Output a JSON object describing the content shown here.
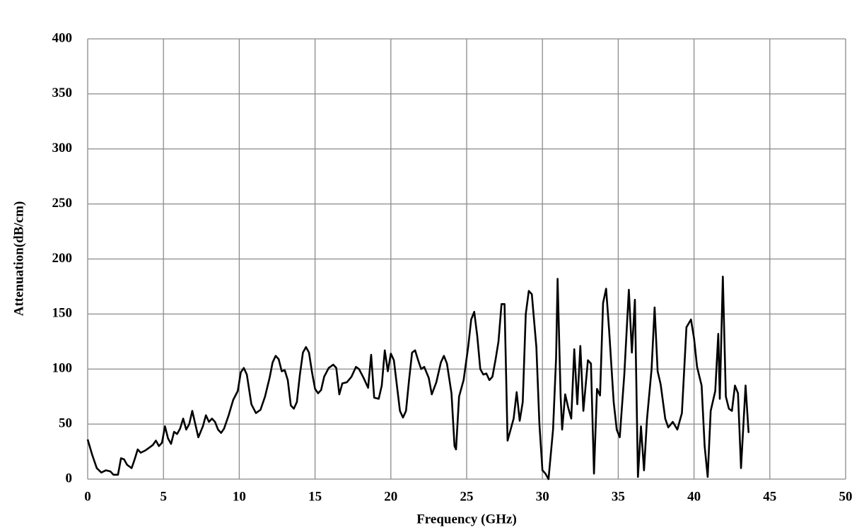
{
  "chart_data": {
    "type": "line",
    "xlabel": "Frequency (GHz)",
    "ylabel": "Attenuation(dB/cm)",
    "color": "#000000",
    "grid": true,
    "xlim": [
      0,
      50
    ],
    "xticks": [
      0,
      5,
      10,
      15,
      20,
      25,
      30,
      35,
      40,
      45,
      50
    ],
    "ylim": [
      0,
      400
    ],
    "yticks": [
      0,
      50,
      100,
      150,
      200,
      250,
      300,
      350,
      400
    ],
    "x": [
      0,
      0.3,
      0.6,
      0.9,
      1.2,
      1.5,
      1.7,
      2.0,
      2.2,
      2.4,
      2.6,
      2.9,
      3.1,
      3.3,
      3.5,
      3.8,
      4.0,
      4.3,
      4.5,
      4.7,
      4.9,
      5.1,
      5.3,
      5.5,
      5.7,
      5.9,
      6.1,
      6.3,
      6.5,
      6.7,
      6.9,
      7.1,
      7.3,
      7.6,
      7.8,
      8.0,
      8.2,
      8.4,
      8.6,
      8.8,
      9.0,
      9.3,
      9.6,
      9.9,
      10.1,
      10.3,
      10.5,
      10.8,
      11.1,
      11.4,
      11.7,
      12.0,
      12.2,
      12.4,
      12.6,
      12.8,
      13.0,
      13.2,
      13.4,
      13.6,
      13.8,
      14.0,
      14.2,
      14.4,
      14.6,
      14.8,
      15.0,
      15.2,
      15.4,
      15.6,
      15.9,
      16.2,
      16.4,
      16.6,
      16.8,
      17.1,
      17.4,
      17.7,
      17.9,
      18.2,
      18.4,
      18.5,
      18.7,
      18.9,
      19.2,
      19.4,
      19.6,
      19.8,
      20.0,
      20.2,
      20.4,
      20.6,
      20.8,
      21.0,
      21.2,
      21.4,
      21.6,
      21.8,
      22.0,
      22.2,
      22.5,
      22.7,
      23.0,
      23.3,
      23.5,
      23.7,
      24.0,
      24.2,
      24.3,
      24.5,
      24.8,
      25.1,
      25.3,
      25.5,
      25.7,
      25.9,
      26.1,
      26.3,
      26.5,
      26.7,
      26.9,
      27.1,
      27.3,
      27.5,
      27.7,
      27.9,
      28.1,
      28.3,
      28.5,
      28.7,
      28.9,
      29.1,
      29.3,
      29.6,
      29.8,
      30.0,
      30.2,
      30.4,
      30.7,
      30.9,
      31.0,
      31.2,
      31.3,
      31.5,
      31.7,
      31.9,
      32.1,
      32.3,
      32.5,
      32.7,
      33.0,
      33.2,
      33.4,
      33.6,
      33.8,
      34.0,
      34.2,
      34.4,
      34.7,
      34.9,
      35.1,
      35.4,
      35.7,
      35.9,
      36.1,
      36.3,
      36.5,
      36.7,
      36.9,
      37.2,
      37.4,
      37.6,
      37.8,
      38.1,
      38.3,
      38.6,
      38.9,
      39.2,
      39.5,
      39.8,
      40.0,
      40.2,
      40.5,
      40.7,
      40.9,
      41.1,
      41.4,
      41.6,
      41.7,
      41.9,
      42.1,
      42.3,
      42.5,
      42.7,
      42.9,
      43.1,
      43.4,
      43.6
    ],
    "values": [
      36,
      22,
      10,
      6,
      8,
      7,
      4,
      4,
      19,
      18,
      13,
      10,
      18,
      27,
      24,
      26,
      28,
      31,
      35,
      30,
      33,
      48,
      37,
      32,
      43,
      41,
      46,
      55,
      45,
      50,
      62,
      50,
      38,
      48,
      58,
      52,
      55,
      52,
      45,
      42,
      46,
      58,
      72,
      80,
      97,
      101,
      95,
      68,
      60,
      63,
      75,
      92,
      106,
      112,
      109,
      98,
      99,
      90,
      67,
      64,
      70,
      95,
      115,
      120,
      115,
      97,
      82,
      78,
      81,
      93,
      101,
      104,
      101,
      77,
      87,
      88,
      93,
      102,
      100,
      92,
      86,
      83,
      113,
      74,
      73,
      85,
      117,
      98,
      114,
      108,
      85,
      62,
      56,
      62,
      90,
      115,
      117,
      108,
      100,
      102,
      92,
      77,
      88,
      106,
      112,
      105,
      78,
      30,
      27,
      75,
      90,
      120,
      145,
      152,
      130,
      100,
      95,
      96,
      90,
      93,
      108,
      125,
      159,
      159,
      35,
      45,
      55,
      79,
      53,
      70,
      150,
      171,
      168,
      120,
      50,
      8,
      5,
      0,
      45,
      110,
      182,
      75,
      45,
      77,
      65,
      55,
      118,
      68,
      121,
      62,
      108,
      105,
      5,
      82,
      76,
      160,
      173,
      135,
      70,
      45,
      38,
      95,
      172,
      115,
      163,
      2,
      48,
      8,
      55,
      100,
      156,
      98,
      86,
      55,
      47,
      52,
      45,
      60,
      138,
      145,
      128,
      102,
      85,
      30,
      2,
      62,
      80,
      132,
      73,
      184,
      75,
      64,
      62,
      85,
      78,
      10,
      85,
      42
    ]
  }
}
